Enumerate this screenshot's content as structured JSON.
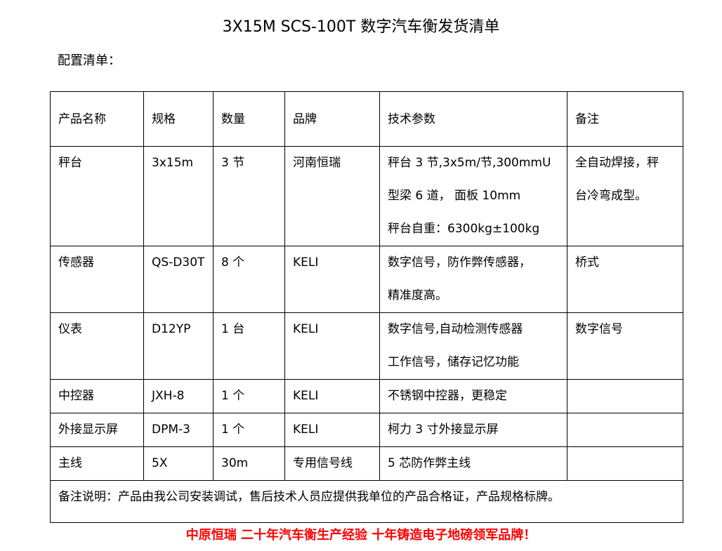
{
  "title": "3X15M SCS-100T 数字汽车衡发货清单",
  "subtitle": "配置清单：",
  "table": {
    "headers": [
      "产品名称",
      "规格",
      "数量",
      "品牌",
      "技术参数",
      "备注"
    ],
    "rows": [
      {
        "name": "秤台",
        "spec": "3x15m",
        "qty": "3 节",
        "brand": "河南恒瑞",
        "params": [
          "秤台 3 节,3x5m/节,300mmU",
          "型梁 6 道， 面板 10mm",
          "秤台自重：6300kg±100kg"
        ],
        "note": [
          "全自动焊接，秤",
          "台冷弯成型。"
        ]
      },
      {
        "name": "传感器",
        "spec": "QS-D30T",
        "qty": "8 个",
        "brand": "KELI",
        "params": [
          "数字信号，防作弊传感器，",
          "精准度高。"
        ],
        "note": [
          "桥式"
        ]
      },
      {
        "name": "仪表",
        "spec": "D12YP",
        "qty": "1 台",
        "brand": "KELI",
        "params": [
          "数字信号,自动检测传感器",
          "工作信号，储存记忆功能"
        ],
        "note": [
          "数字信号"
        ]
      },
      {
        "name": "中控器",
        "spec": "JXH-8",
        "qty": "1 个",
        "brand": "KELI",
        "params": [
          "不锈钢中控器，更稳定"
        ],
        "note": []
      },
      {
        "name": "外接显示屏",
        "spec": "DPM-3",
        "qty": "1 个",
        "brand": "KELI",
        "params": [
          "柯力 3 寸外接显示屏"
        ],
        "note": []
      },
      {
        "name": "主线",
        "spec": "5X",
        "qty": "30m",
        "brand": "专用信号线",
        "params": [
          "5 芯防作弊主线"
        ],
        "note": []
      }
    ],
    "remark": "备注说明：产品由我公司安装调试，售后技术人员应提供我单位的产品合格证，产品规格标牌。"
  },
  "footer": "中原恒瑞 二十年汽车衡生产经验 十年铸造电子地磅领军品牌！",
  "colors": {
    "footer": "#ff0000"
  }
}
